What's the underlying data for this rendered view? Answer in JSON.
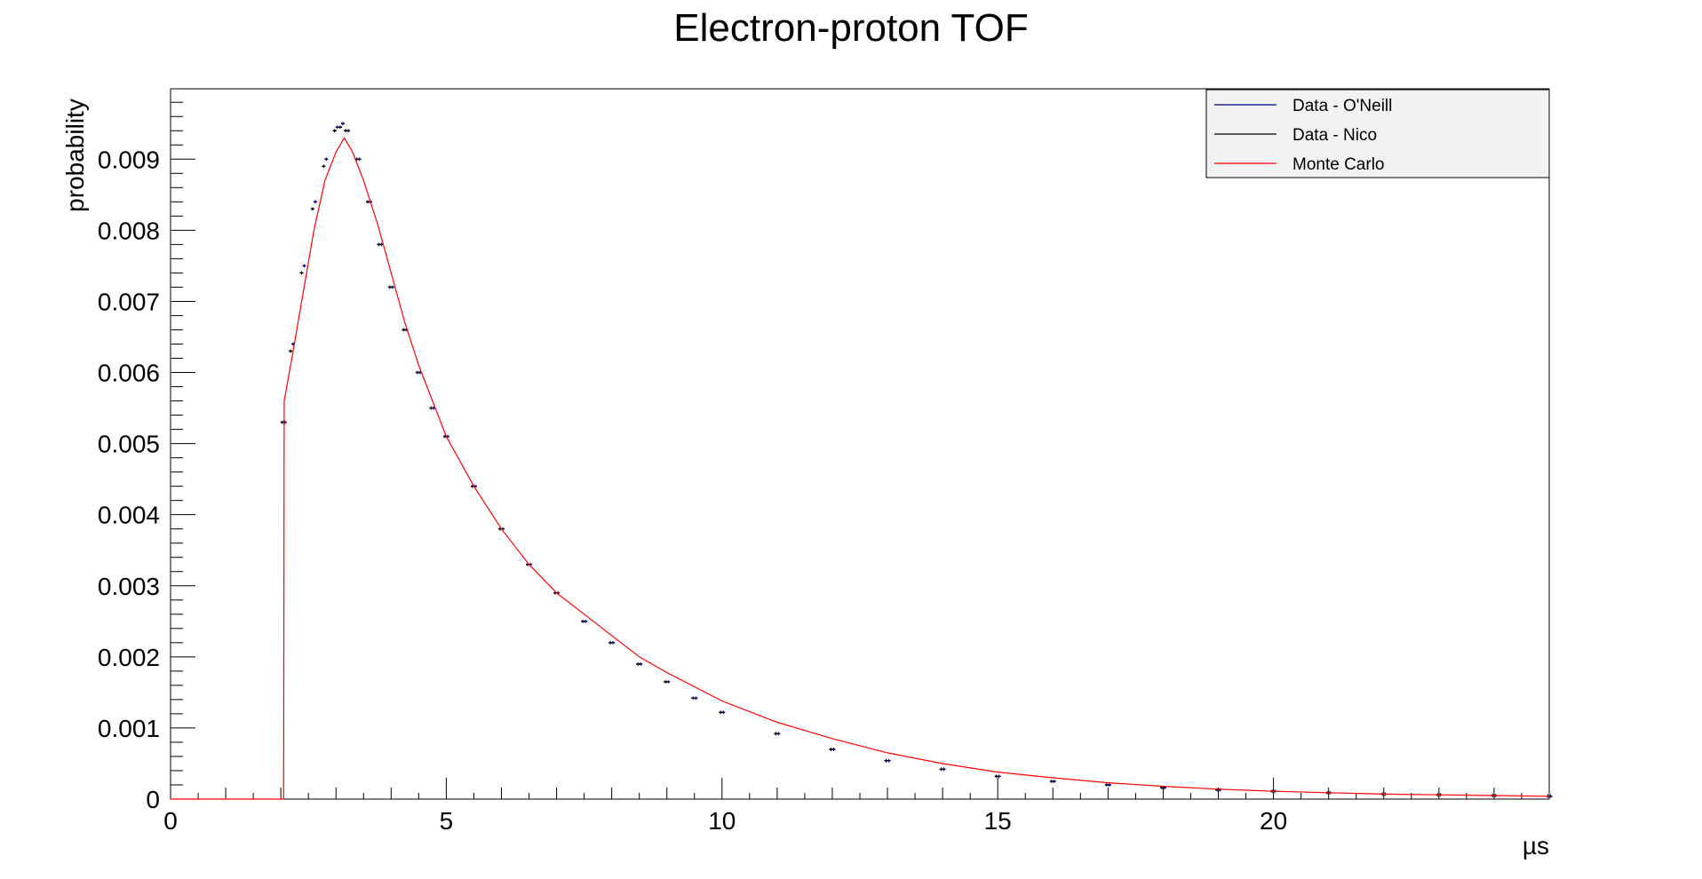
{
  "chart_data": {
    "type": "line",
    "title": "Electron-proton TOF",
    "xlabel": "µs",
    "ylabel": "probability",
    "xlim": [
      0,
      25
    ],
    "ylim": [
      0,
      0.01
    ],
    "x_ticks": [
      0,
      5,
      10,
      15,
      20
    ],
    "y_ticks": [
      0,
      0.001,
      0.002,
      0.003,
      0.004,
      0.005,
      0.006,
      0.007,
      0.008,
      0.009
    ],
    "y_tick_labels": [
      "0",
      "0.001",
      "0.002",
      "0.003",
      "0.004",
      "0.005",
      "0.006",
      "0.007",
      "0.008",
      "0.009"
    ],
    "grid": false,
    "legend_position": "top-right",
    "legend": [
      {
        "name": "Data - O'Neill",
        "color": "#000080",
        "style": "line"
      },
      {
        "name": "Data - Nico",
        "color": "#000000",
        "style": "line"
      },
      {
        "name": "Monte Carlo",
        "color": "#ff0000",
        "style": "line"
      }
    ],
    "series": [
      {
        "name": "Data - O'Neill",
        "color": "#000080",
        "style": "markers",
        "x": [
          2.05,
          2.2,
          2.4,
          2.6,
          2.8,
          3.0,
          3.1,
          3.2,
          3.4,
          3.6,
          3.8,
          4.0,
          4.25,
          4.5,
          4.75,
          5.0,
          5.5,
          6.0,
          6.5,
          7.0,
          7.5,
          8.0,
          8.5,
          9.0,
          9.5,
          10.0,
          11.0,
          12.0,
          13.0,
          14.0,
          15.0,
          16.0,
          17.0,
          18.0,
          19.0,
          20.0,
          21.0,
          22.0,
          23.0,
          24.0,
          25.0
        ],
        "y": [
          0.0053,
          0.0064,
          0.0075,
          0.0084,
          0.009,
          0.00945,
          0.0095,
          0.0094,
          0.009,
          0.0084,
          0.0078,
          0.0072,
          0.0066,
          0.006,
          0.0055,
          0.0051,
          0.0044,
          0.0038,
          0.0033,
          0.0029,
          0.0025,
          0.0022,
          0.0019,
          0.00165,
          0.00142,
          0.00122,
          0.00092,
          0.0007,
          0.00054,
          0.00042,
          0.00032,
          0.00025,
          0.0002,
          0.00016,
          0.00013,
          0.00011,
          9e-05,
          7e-05,
          6e-05,
          5e-05,
          4e-05
        ]
      },
      {
        "name": "Data - Nico",
        "color": "#000000",
        "style": "markers",
        "x": [
          2.05,
          2.2,
          2.4,
          2.6,
          2.8,
          3.0,
          3.1,
          3.2,
          3.4,
          3.6,
          3.8,
          4.0,
          4.25,
          4.5,
          4.75,
          5.0,
          5.5,
          6.0,
          6.5,
          7.0,
          7.5,
          8.0,
          8.5,
          9.0,
          9.5,
          10.0,
          11.0,
          12.0,
          13.0,
          14.0,
          15.0,
          16.0,
          17.0,
          18.0,
          19.0,
          20.0,
          21.0,
          22.0,
          23.0,
          24.0,
          25.0
        ],
        "y": [
          0.0053,
          0.0063,
          0.0074,
          0.0083,
          0.0089,
          0.0094,
          0.00945,
          0.0094,
          0.009,
          0.0084,
          0.0078,
          0.0072,
          0.0066,
          0.006,
          0.0055,
          0.0051,
          0.0044,
          0.0038,
          0.0033,
          0.0029,
          0.0025,
          0.0022,
          0.0019,
          0.00165,
          0.00142,
          0.00122,
          0.00092,
          0.0007,
          0.00054,
          0.00042,
          0.00032,
          0.00025,
          0.0002,
          0.00016,
          0.00013,
          0.00011,
          9e-05,
          7e-05,
          6e-05,
          5e-05,
          4e-05
        ]
      },
      {
        "name": "Monte Carlo",
        "color": "#ff0000",
        "style": "line",
        "x": [
          0,
          2.05,
          2.06,
          2.2,
          2.4,
          2.6,
          2.8,
          3.0,
          3.15,
          3.3,
          3.5,
          3.75,
          4.0,
          4.25,
          4.5,
          4.75,
          5.0,
          5.5,
          6.0,
          6.5,
          7.0,
          7.5,
          8.0,
          8.5,
          9.0,
          9.5,
          10.0,
          11.0,
          12.0,
          13.0,
          14.0,
          15.0,
          16.0,
          17.0,
          18.0,
          19.0,
          20.0,
          21.0,
          22.0,
          23.0,
          24.0,
          25.0
        ],
        "y": [
          0,
          0,
          0.0056,
          0.0062,
          0.0071,
          0.008,
          0.0087,
          0.0091,
          0.0093,
          0.0091,
          0.0087,
          0.0081,
          0.0074,
          0.0067,
          0.0061,
          0.0056,
          0.0051,
          0.0044,
          0.0038,
          0.0033,
          0.0029,
          0.0026,
          0.0023,
          0.002,
          0.00178,
          0.00158,
          0.00138,
          0.00108,
          0.00085,
          0.00065,
          0.0005,
          0.00038,
          0.0003,
          0.00023,
          0.00018,
          0.00014,
          0.00011,
          9e-05,
          7e-05,
          6e-05,
          5e-05,
          4e-05
        ]
      }
    ]
  }
}
